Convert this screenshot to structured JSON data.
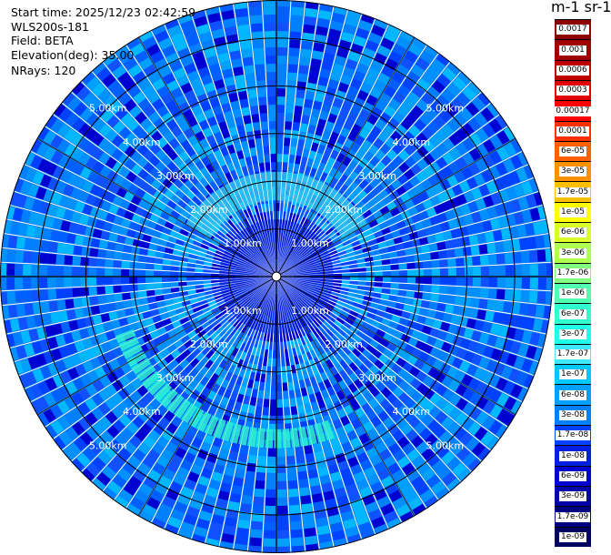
{
  "info": {
    "start_time": "Start time: 2025/12/23 02:42:59",
    "device": "WLS200s-181",
    "field": "Field: BETA",
    "elevation": "Elevation(deg): 35.00",
    "nrays": "NRays: 120"
  },
  "colorbar": {
    "title": "m-1 sr-1",
    "levels": [
      {
        "label": "0.0017",
        "color": "#8b0000"
      },
      {
        "label": "0.001",
        "color": "#a00000"
      },
      {
        "label": "0.0006",
        "color": "#c00000"
      },
      {
        "label": "0.0003",
        "color": "#e00000"
      },
      {
        "label": "0.00017",
        "color": "#ff0000"
      },
      {
        "label": "0.0001",
        "color": "#ff3000"
      },
      {
        "label": "6e-05",
        "color": "#ff6000"
      },
      {
        "label": "3e-05",
        "color": "#ff9000"
      },
      {
        "label": "1.7e-05",
        "color": "#ffc000"
      },
      {
        "label": "1e-05",
        "color": "#ffff00"
      },
      {
        "label": "6e-06",
        "color": "#d8ff26"
      },
      {
        "label": "3e-06",
        "color": "#b0ff50"
      },
      {
        "label": "1.7e-06",
        "color": "#80ff80"
      },
      {
        "label": "1e-06",
        "color": "#50ffb0"
      },
      {
        "label": "6e-07",
        "color": "#30ffd0"
      },
      {
        "label": "3e-07",
        "color": "#20ffe8"
      },
      {
        "label": "1.7e-07",
        "color": "#40e8ff"
      },
      {
        "label": "1e-07",
        "color": "#00c8ff"
      },
      {
        "label": "6e-08",
        "color": "#00a0ff"
      },
      {
        "label": "3e-08",
        "color": "#0080ff"
      },
      {
        "label": "1.7e-08",
        "color": "#0040ff"
      },
      {
        "label": "1e-08",
        "color": "#0020e0"
      },
      {
        "label": "6e-09",
        "color": "#0000d0"
      },
      {
        "label": "3e-09",
        "color": "#0000a8"
      },
      {
        "label": "1.7e-09",
        "color": "#000080"
      },
      {
        "label": "1e-09",
        "color": "#000060"
      }
    ]
  },
  "chart_data": {
    "type": "heatmap",
    "projection": "polar (PPI scan)",
    "field": "BETA",
    "elevation_deg": 35.0,
    "nrays": 120,
    "range_rings_km": [
      1.0,
      2.0,
      3.0,
      4.0,
      5.0
    ],
    "ring_labels": [
      "1.00km",
      "2.00km",
      "3.00km",
      "4.00km",
      "5.00km"
    ],
    "max_range_km": 5.8,
    "colorscale": "log10, 1e-09 to 0.0017 m-1 sr-1",
    "background_value": "3e-08",
    "features": [
      {
        "description_value_range": "1.7e-07 to 3e-07",
        "azimuth_deg": [
          160,
          250
        ],
        "range_km": [
          3.2,
          3.6
        ]
      },
      {
        "description_value_range": "6e-08 to 1.7e-07",
        "azimuth_deg": [
          300,
          420
        ],
        "range_km": [
          1.6,
          2.2
        ]
      },
      {
        "description_value_range": "1e-08 to 3e-08",
        "azimuth_deg": [
          0,
          360
        ],
        "range_km": [
          0.0,
          1.2
        ]
      }
    ],
    "grid": true
  }
}
